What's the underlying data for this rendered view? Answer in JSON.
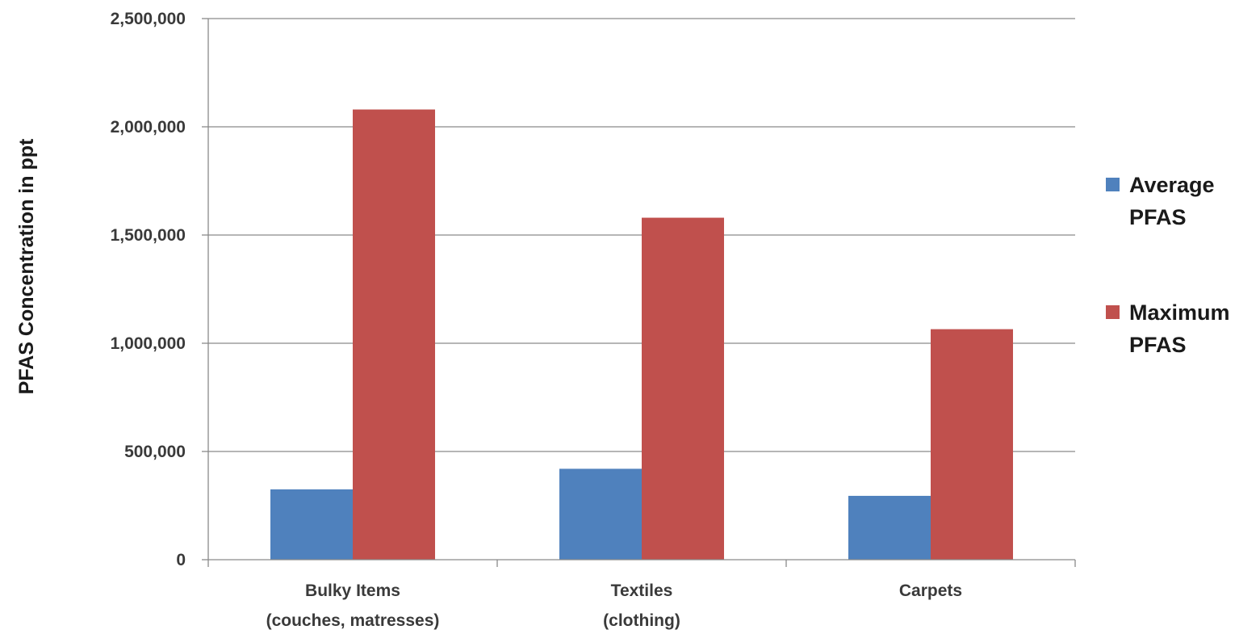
{
  "chart_data": {
    "type": "bar",
    "ylabel": "PFAS Concentration in ppt",
    "ylim": [
      0,
      2500000
    ],
    "yticks": [
      0,
      500000,
      1000000,
      1500000,
      2000000,
      2500000
    ],
    "ytick_labels": [
      "0",
      "500,000",
      "1,000,000",
      "1,500,000",
      "2,000,000",
      "2,500,000"
    ],
    "grid": true,
    "legend_position": "right",
    "categories": [
      [
        "Bulky Items",
        "(couches, matresses)"
      ],
      [
        "Textiles",
        "(clothing)"
      ],
      [
        "Carpets"
      ]
    ],
    "series": [
      {
        "name": [
          "Average",
          "PFAS"
        ],
        "color": "#4f81bd",
        "values": [
          325000,
          420000,
          295000
        ]
      },
      {
        "name": [
          "Maximum",
          "PFAS"
        ],
        "color": "#c0504d",
        "values": [
          2080000,
          1580000,
          1065000
        ]
      }
    ]
  }
}
